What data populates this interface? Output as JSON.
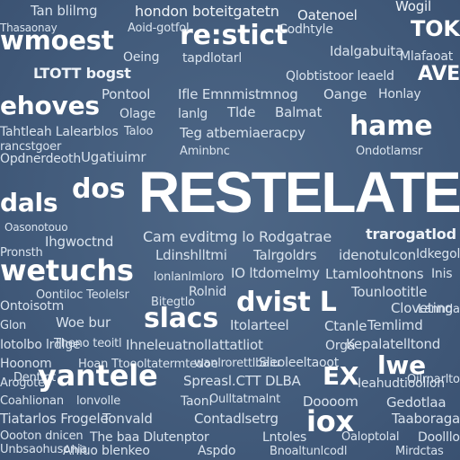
{
  "words": [
    {
      "text": "Tan blilmg",
      "cls": "c3"
    },
    {
      "text": "hondon boteitgatetn",
      "cls": "c2"
    },
    {
      "text": "Oatenoel",
      "cls": "c2"
    },
    {
      "text": "Wogil",
      "cls": "c2"
    },
    {
      "text": "wmoest",
      "cls": "c1"
    },
    {
      "text": "re:stict",
      "cls": "c1"
    },
    {
      "text": "TOK",
      "cls": "c1"
    },
    {
      "text": "Aoid-gotfol",
      "cls": "c3"
    },
    {
      "text": "Thasaonay",
      "cls": "c3"
    },
    {
      "text": "Idalgabuita",
      "cls": "c3"
    },
    {
      "text": "Oeing",
      "cls": "c3"
    },
    {
      "text": "tapdlotarl",
      "cls": "c3"
    },
    {
      "text": "Codhtyle",
      "cls": "c3"
    },
    {
      "text": "Mlafaoat",
      "cls": "c3"
    },
    {
      "text": "LTOTT bogst",
      "cls": "c2"
    },
    {
      "text": "Qlobtistoor leaeld",
      "cls": "c3"
    },
    {
      "text": "AVE",
      "cls": "c1"
    },
    {
      "text": "Pontool",
      "cls": "c3"
    },
    {
      "text": "Ifle Emnmistmnog",
      "cls": "c3"
    },
    {
      "text": "Oange",
      "cls": "c3"
    },
    {
      "text": "Honlay",
      "cls": "c3"
    },
    {
      "text": "ehoves",
      "cls": "c1"
    },
    {
      "text": "Olage",
      "cls": "c3"
    },
    {
      "text": "lanlg",
      "cls": "c3"
    },
    {
      "text": "Tlde",
      "cls": "c3"
    },
    {
      "text": "Balmat",
      "cls": "c3"
    },
    {
      "text": "hame",
      "cls": "c1"
    },
    {
      "text": "Tahtleah Lalearblos",
      "cls": "c3"
    },
    {
      "text": "Teg atbemiaeracpy",
      "cls": "c3"
    },
    {
      "text": "Taloo",
      "cls": "c3"
    },
    {
      "text": "Ondotlamsr",
      "cls": "c3"
    },
    {
      "text": "Opdnerdeoth",
      "cls": "c3"
    },
    {
      "text": "Ugatiuimr",
      "cls": "c3"
    },
    {
      "text": "rancstgoer",
      "cls": "c3"
    },
    {
      "text": "Aminbnc",
      "cls": "c3"
    },
    {
      "text": "dals",
      "cls": "c1"
    },
    {
      "text": "dos",
      "cls": "c1"
    },
    {
      "text": "RESTELATE",
      "cls": "c1"
    },
    {
      "text": "Oasonotouo",
      "cls": "c3"
    },
    {
      "text": "Cam evditmg lo Rodgatrae",
      "cls": "c3"
    },
    {
      "text": "trarogatlod",
      "cls": "c2"
    },
    {
      "text": "Ihgwoctnd",
      "cls": "c3"
    },
    {
      "text": "Ldinshlltmi",
      "cls": "c3"
    },
    {
      "text": "Talrgoldrs",
      "cls": "c3"
    },
    {
      "text": "idenotulcon",
      "cls": "c3"
    },
    {
      "text": "Pronsth",
      "cls": "c3"
    },
    {
      "text": "Idkegol",
      "cls": "c3"
    },
    {
      "text": "wetuchs",
      "cls": "c1"
    },
    {
      "text": "lonlanlmloro",
      "cls": "c3"
    },
    {
      "text": "IO ltdomelmy",
      "cls": "c3"
    },
    {
      "text": "Ltamloohtnons",
      "cls": "c3"
    },
    {
      "text": "Inis",
      "cls": "c3"
    },
    {
      "text": "Oontiloc Teolelsr",
      "cls": "c3"
    },
    {
      "text": "Rolnid",
      "cls": "c3"
    },
    {
      "text": "dvist L",
      "cls": "c1"
    },
    {
      "text": "Tounlootitle",
      "cls": "c3"
    },
    {
      "text": "Ontoisotm",
      "cls": "c3"
    },
    {
      "text": "Bitegtlo",
      "cls": "c3"
    },
    {
      "text": "slacs",
      "cls": "c1"
    },
    {
      "text": "Itolarteel",
      "cls": "c3"
    },
    {
      "text": "Ctanle",
      "cls": "c3"
    },
    {
      "text": "Temlimd",
      "cls": "c3"
    },
    {
      "text": "Cloveting",
      "cls": "c3"
    },
    {
      "text": "Lannda",
      "cls": "c3"
    },
    {
      "text": "Woe bur",
      "cls": "c3"
    },
    {
      "text": "Ihneleuatnollattatliot",
      "cls": "c3"
    },
    {
      "text": "Glon",
      "cls": "c3"
    },
    {
      "text": "Iotolbo lrdlge",
      "cls": "c3"
    },
    {
      "text": "Kepalatelltond",
      "cls": "c3"
    },
    {
      "text": "Theno teoitl",
      "cls": "c3"
    },
    {
      "text": "Hoan Ttoooltatermtedoe",
      "cls": "c3"
    },
    {
      "text": "Orga",
      "cls": "c3"
    },
    {
      "text": "Sleoleeltaoot",
      "cls": "c3"
    },
    {
      "text": "Hoonom",
      "cls": "c3"
    },
    {
      "text": "wanlrorettlbaiu",
      "cls": "c3"
    },
    {
      "text": "lwe",
      "cls": "c1"
    },
    {
      "text": "Dentlnt",
      "cls": "c3"
    },
    {
      "text": "Oilrnarlto",
      "cls": "c3"
    },
    {
      "text": "yantele",
      "cls": "c1"
    },
    {
      "text": "Spreasl.CTT DLBA",
      "cls": "c3"
    },
    {
      "text": "EX",
      "cls": "c1"
    },
    {
      "text": "Ieahudtioolion",
      "cls": "c3"
    },
    {
      "text": "Arogote",
      "cls": "c3"
    },
    {
      "text": "Taonl",
      "cls": "c3"
    },
    {
      "text": "Gedotlaa",
      "cls": "c3"
    },
    {
      "text": "Oulltatmalnt",
      "cls": "c3"
    },
    {
      "text": "Doooom",
      "cls": "c3"
    },
    {
      "text": "Coahlionan",
      "cls": "c3"
    },
    {
      "text": "lonvolle",
      "cls": "c3"
    },
    {
      "text": "Tiatarlos Frogele",
      "cls": "c3"
    },
    {
      "text": "Tonvald",
      "cls": "c3"
    },
    {
      "text": "Contadlsetrg",
      "cls": "c3"
    },
    {
      "text": "iox",
      "cls": "c1"
    },
    {
      "text": "Taaboraga",
      "cls": "c3"
    },
    {
      "text": "Oooton dnicen",
      "cls": "c3"
    },
    {
      "text": "The baa Dlutenptor",
      "cls": "c3"
    },
    {
      "text": "Lntoles",
      "cls": "c3"
    },
    {
      "text": "Oaloptolal",
      "cls": "c3"
    },
    {
      "text": "Doolllo",
      "cls": "c3"
    },
    {
      "text": "Unbsaohusonia",
      "cls": "c3"
    },
    {
      "text": "Ahiuo blenkeo",
      "cls": "c3"
    },
    {
      "text": "Aspdo",
      "cls": "c3"
    },
    {
      "text": "Bnoaltunlcodl",
      "cls": "c3"
    },
    {
      "text": "Mirdctas",
      "cls": "c3"
    }
  ]
}
